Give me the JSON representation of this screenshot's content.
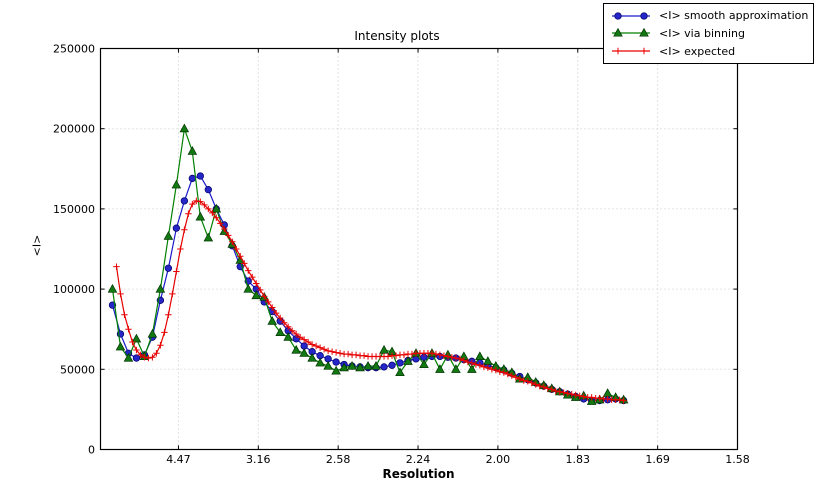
{
  "chart_data": {
    "type": "line",
    "title": "Intensity plots",
    "xlabel": "Resolution",
    "ylabel": "<I>",
    "x_axis_note": "x axis linear in 1/d^2; tick labels show resolution d in Angstrom",
    "x_tick_labels": [
      "4.47",
      "3.16",
      "2.58",
      "2.24",
      "2.00",
      "1.83",
      "1.69",
      "1.58"
    ],
    "x_ticks_inv_d2": [
      0.05,
      0.1,
      0.15,
      0.2,
      0.25,
      0.3,
      0.35,
      0.4
    ],
    "y_tick_labels": [
      "0",
      "50000",
      "100000",
      "150000",
      "200000",
      "250000"
    ],
    "y_ticks": [
      0,
      50000,
      100000,
      150000,
      200000,
      250000
    ],
    "ylim": [
      0,
      250000
    ],
    "xlim_inv_d2": [
      0.0012,
      0.4
    ],
    "grid": true,
    "legend_position": "upper right, outside axes",
    "series": [
      {
        "id": "smooth",
        "name": "<I> smooth approximation",
        "marker": "circle",
        "line_color": "#1b1bcc",
        "fill_color": "#2525c8",
        "edge_color": "#000066",
        "x_start_inv_d2": 0.0087,
        "x_step_inv_d2": 0.005,
        "values": [
          90000,
          72000,
          60000,
          57000,
          59000,
          70000,
          93000,
          113000,
          138000,
          155000,
          169000,
          170500,
          162000,
          150000,
          140000,
          127000,
          114000,
          105000,
          100000,
          92000,
          86000,
          80000,
          74000,
          69000,
          64500,
          61000,
          58500,
          56500,
          54500,
          53000,
          52000,
          51500,
          51000,
          51000,
          51500,
          52500,
          54000,
          55500,
          56500,
          57500,
          58000,
          58000,
          57500,
          57000,
          56000,
          55000,
          54000,
          52500,
          51000,
          49500,
          47500,
          45500,
          43500,
          41500,
          39500,
          37500,
          36000,
          34500,
          33000,
          31500,
          30500,
          30500,
          31000,
          31500,
          30500
        ]
      },
      {
        "id": "binning",
        "name": "<I> via binning",
        "marker": "triangle",
        "line_color": "#008000",
        "fill_color": "#127812",
        "edge_color": "#003300",
        "x_start_inv_d2": 0.0087,
        "x_step_inv_d2": 0.005,
        "values": [
          100000,
          64000,
          57000,
          69000,
          58000,
          72000,
          100000,
          133000,
          165000,
          200000,
          186000,
          145000,
          132000,
          150000,
          136000,
          128000,
          118000,
          100000,
          96000,
          95000,
          80000,
          73000,
          70000,
          62000,
          60000,
          57000,
          54000,
          52000,
          49000,
          51000,
          52000,
          51000,
          52000,
          52000,
          62000,
          61000,
          48000,
          55000,
          60000,
          53000,
          60000,
          50000,
          59000,
          50000,
          58000,
          50000,
          58000,
          55000,
          52000,
          50000,
          48000,
          44000,
          45000,
          42000,
          40000,
          38000,
          36000,
          34000,
          32500,
          33500,
          30000,
          31000,
          35000,
          32500,
          31000
        ]
      },
      {
        "id": "expected",
        "name": "<I> expected",
        "marker": "plus",
        "line_color": "#e60000",
        "fill_color": "#e60000",
        "edge_color": "#e60000",
        "x_start_inv_d2": 0.0112,
        "x_step_inv_d2": 0.0025,
        "values": [
          114000,
          97000,
          84000,
          75000,
          67000,
          62000,
          59000,
          57500,
          57000,
          57500,
          60000,
          65000,
          73000,
          84000,
          97000,
          111000,
          125000,
          137000,
          147000,
          153000,
          155000,
          154500,
          152500,
          150000,
          147500,
          144500,
          141000,
          137500,
          133500,
          129500,
          125000,
          120500,
          116000,
          111500,
          107500,
          103500,
          99500,
          95500,
          92000,
          88500,
          85000,
          82000,
          79000,
          76500,
          74000,
          72000,
          70000,
          68500,
          67000,
          65500,
          64500,
          63500,
          62500,
          61500,
          61000,
          60500,
          60000,
          59500,
          59500,
          59000,
          59000,
          58500,
          58500,
          58000,
          58000,
          58000,
          58000,
          58000,
          58000,
          58500,
          58500,
          59000,
          59000,
          59500,
          59500,
          60000,
          60000,
          60000,
          60000,
          60000,
          59500,
          59000,
          58500,
          58000,
          57500,
          57000,
          56500,
          55500,
          54500,
          54000,
          53000,
          52500,
          51500,
          51000,
          50000,
          49500,
          48500,
          48000,
          47000,
          46000,
          45000,
          44000,
          43000,
          42500,
          41500,
          40500,
          39500,
          39000,
          38000,
          37500,
          36500,
          36000,
          35500,
          35000,
          34500,
          34000,
          33500,
          33000,
          32500,
          32500,
          32000,
          32000,
          31500,
          31500,
          31000,
          31000,
          31000,
          30500
        ]
      }
    ],
    "colors": {
      "grid": "#c9c9c9",
      "frame": "#000000",
      "background": "#ffffff"
    }
  }
}
